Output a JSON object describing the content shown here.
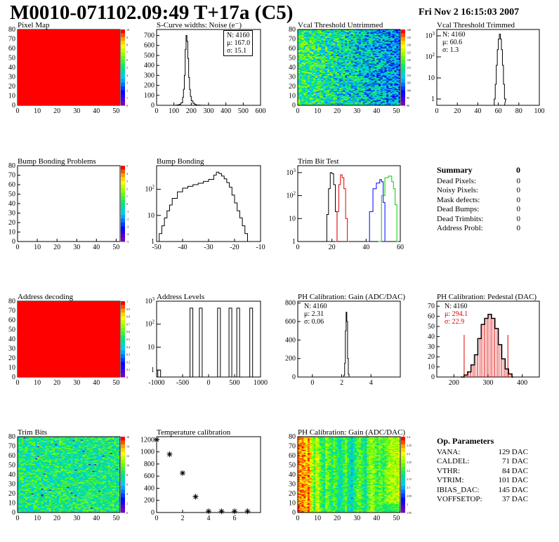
{
  "header": {
    "title": "M0010-071102.09:49 T+17a (C5)",
    "date": "Fri Nov  2 16:15:03 2007"
  },
  "panels": {
    "pixel_map": {
      "title": "Pixel Map",
      "palette": [
        "10",
        "9",
        "8",
        "7",
        "6",
        "5",
        "4",
        "3",
        "2",
        "1",
        "0"
      ]
    },
    "scurve": {
      "title": "S-Curve widths: Noise (e⁻)",
      "stats": {
        "n": "N: 4160",
        "mu": "μ: 167.0",
        "sigma": "σ: 15.1"
      }
    },
    "vcal_untrimmed": {
      "title": "Vcal Threshold Untrimmed",
      "palette": [
        "140",
        "135",
        "130",
        "125",
        "120",
        "115",
        "110",
        "105",
        "100",
        "95",
        "90"
      ]
    },
    "vcal_trimmed": {
      "title": "Vcal Threshold Trimmed",
      "stats": {
        "n": "N: 4160",
        "mu": "μ: 60.6",
        "sigma": "σ:  1.3"
      }
    },
    "bump_problems": {
      "title": "Bump Bonding Problems",
      "palette": [
        "5",
        "4",
        "3",
        "2",
        "1",
        "0",
        "-1",
        "-2",
        "-3",
        "-4",
        "-5"
      ]
    },
    "bump_bonding": {
      "title": "Bump Bonding"
    },
    "trim_bit": {
      "title": "Trim Bit Test"
    },
    "address_decoding": {
      "title": "Address decoding",
      "palette": [
        "1",
        "0.9",
        "0.8",
        "0.7",
        "0.6",
        "0.5",
        "0.4",
        "0.3",
        "0.2",
        "0.1",
        "0"
      ]
    },
    "address_levels": {
      "title": "Address Levels"
    },
    "ph_gain_hist": {
      "title": "PH Calibration: Gain (ADC/DAC)",
      "stats": {
        "n": "N: 4160",
        "mu": "μ: 2.31",
        "sigma": "σ: 0.06"
      }
    },
    "ph_pedestal": {
      "title": "PH Calibration: Pedestal (DAC)",
      "stats": {
        "n": "N: 4160",
        "mu": "μ: 294.1",
        "sigma": "σ: 22.9"
      }
    },
    "trim_bits": {
      "title": "Trim Bits",
      "palette": [
        "16",
        "14",
        "12",
        "10",
        "8",
        "6",
        "4",
        "2",
        "0"
      ]
    },
    "temperature": {
      "title": "Temperature calibration"
    },
    "ph_gain_map": {
      "title": "PH Calibration: Gain (ADC/DAC)",
      "palette": [
        "2.4",
        "2.35",
        "2.3",
        "2.25",
        "2.2",
        "2.15",
        "2.1",
        "2.05",
        "2",
        "1.95"
      ]
    }
  },
  "summary": {
    "title": "Summary",
    "total": "0",
    "rows": [
      {
        "label": "Dead Pixels:",
        "value": "0"
      },
      {
        "label": "Noisy Pixels:",
        "value": "0"
      },
      {
        "label": "Mask defects:",
        "value": "0"
      },
      {
        "label": "Dead Bumps:",
        "value": "0"
      },
      {
        "label": "Dead Trimbits:",
        "value": "0"
      },
      {
        "label": "Address Probl:",
        "value": "0"
      }
    ]
  },
  "op_params": {
    "title": "Op. Parameters",
    "rows": [
      {
        "label": "VANA:",
        "value": "129 DAC"
      },
      {
        "label": "CALDEL:",
        "value": "71 DAC"
      },
      {
        "label": "VTHR:",
        "value": "84 DAC"
      },
      {
        "label": "VTRIM:",
        "value": "101 DAC"
      },
      {
        "label": "IBIAS_DAC:",
        "value": "145 DAC"
      },
      {
        "label": "VOFFSETOP:",
        "value": "37 DAC"
      }
    ]
  },
  "chart_data": [
    {
      "id": "pixel_map",
      "type": "heatmap",
      "title": "Pixel Map",
      "xlim": [
        0,
        52
      ],
      "ylim": [
        0,
        80
      ],
      "xticks": [
        0,
        10,
        20,
        30,
        40,
        50
      ],
      "yticks": [
        0,
        10,
        20,
        30,
        40,
        50,
        60,
        70,
        80
      ],
      "fill": "uniform",
      "color": "#ff0000"
    },
    {
      "id": "scurve",
      "type": "line",
      "title": "S-Curve widths: Noise (e⁻)",
      "xlim": [
        0,
        600
      ],
      "ylim": [
        0,
        760
      ],
      "xticks": [
        0,
        100,
        200,
        300,
        400,
        500,
        600
      ],
      "yticks": [
        0,
        100,
        200,
        300,
        400,
        500,
        600,
        700
      ],
      "x": [
        100,
        110,
        120,
        130,
        140,
        150,
        155,
        160,
        165,
        170,
        175,
        180,
        185,
        190,
        195,
        200,
        210,
        220,
        230,
        250,
        280
      ],
      "y": [
        0,
        2,
        4,
        10,
        25,
        80,
        160,
        300,
        560,
        700,
        640,
        470,
        280,
        160,
        90,
        45,
        20,
        8,
        3,
        1,
        0
      ]
    },
    {
      "id": "vcal_untrimmed",
      "type": "heatmap",
      "title": "Vcal Threshold Untrimmed",
      "xlim": [
        0,
        52
      ],
      "ylim": [
        0,
        80
      ],
      "xticks": [
        0,
        10,
        20,
        30,
        40,
        50
      ],
      "yticks": [
        0,
        10,
        20,
        30,
        40,
        50,
        60,
        70,
        80
      ],
      "range": [
        90,
        140
      ]
    },
    {
      "id": "vcal_trimmed",
      "type": "line",
      "title": "Vcal Threshold Trimmed",
      "log_y": true,
      "xlim": [
        0,
        100
      ],
      "ylim": [
        0.5,
        2000
      ],
      "xticks": [
        0,
        20,
        40,
        60,
        80,
        100
      ],
      "x": [
        56,
        57,
        58,
        59,
        60,
        61,
        62,
        63,
        64,
        65,
        66
      ],
      "y": [
        1,
        5,
        40,
        220,
        700,
        1200,
        700,
        220,
        40,
        5,
        1
      ]
    },
    {
      "id": "bump_problems",
      "type": "heatmap",
      "title": "Bump Bonding Problems",
      "xlim": [
        0,
        52
      ],
      "ylim": [
        0,
        80
      ],
      "xticks": [
        0,
        10,
        20,
        30,
        40,
        50
      ],
      "yticks": [
        0,
        10,
        20,
        30,
        40,
        50,
        60,
        70,
        80
      ],
      "fill": "empty"
    },
    {
      "id": "bump_bonding",
      "type": "line",
      "title": "Bump Bonding",
      "log_y": true,
      "xlim": [
        -50,
        -10
      ],
      "ylim": [
        1,
        800
      ],
      "xticks": [
        -50,
        -40,
        -30,
        -20,
        -10
      ],
      "x": [
        -50,
        -49,
        -48,
        -47,
        -46,
        -45,
        -44,
        -42,
        -40,
        -38,
        -36,
        -34,
        -32,
        -30,
        -28,
        -27,
        -26,
        -25,
        -24,
        -23,
        -22,
        -21,
        -20,
        -19,
        -18,
        -17,
        -16,
        -15
      ],
      "y": [
        1,
        2,
        4,
        8,
        15,
        25,
        45,
        80,
        110,
        130,
        150,
        170,
        200,
        240,
        350,
        450,
        400,
        320,
        250,
        180,
        120,
        60,
        30,
        15,
        8,
        4,
        2,
        1
      ]
    },
    {
      "id": "trim_bit",
      "type": "line",
      "title": "Trim Bit Test",
      "log_y": true,
      "xlim": [
        0,
        60
      ],
      "ylim": [
        1,
        2000
      ],
      "xticks": [
        0,
        20,
        40,
        60
      ],
      "series": [
        {
          "color": "#000000",
          "x": [
            16,
            17,
            18,
            19,
            20,
            21,
            22,
            23
          ],
          "y": [
            1,
            15,
            200,
            1000,
            900,
            300,
            20,
            1
          ]
        },
        {
          "color": "#e00000",
          "x": [
            22,
            23,
            24,
            25,
            26,
            27,
            28,
            29
          ],
          "y": [
            1,
            20,
            300,
            800,
            600,
            200,
            10,
            1
          ]
        },
        {
          "color": "#0000ff",
          "x": [
            40,
            42,
            44,
            46,
            48,
            49,
            50,
            51
          ],
          "y": [
            1,
            20,
            200,
            350,
            500,
            400,
            50,
            1
          ]
        },
        {
          "color": "#00cc00",
          "x": [
            47,
            49,
            51,
            53,
            55,
            56,
            57,
            58
          ],
          "y": [
            1,
            100,
            600,
            700,
            400,
            200,
            40,
            1
          ]
        }
      ]
    },
    {
      "id": "address_decoding",
      "type": "heatmap",
      "title": "Address decoding",
      "xlim": [
        0,
        52
      ],
      "ylim": [
        0,
        80
      ],
      "xticks": [
        0,
        10,
        20,
        30,
        40,
        50
      ],
      "yticks": [
        0,
        10,
        20,
        30,
        40,
        50,
        60,
        70,
        80
      ],
      "fill": "uniform",
      "color": "#ff0000"
    },
    {
      "id": "address_levels",
      "type": "line",
      "title": "Address Levels",
      "log_y": true,
      "xlim": [
        -1000,
        1000
      ],
      "ylim": [
        0.5,
        1000
      ],
      "xticks": [
        -1000,
        -500,
        0,
        500,
        1000
      ],
      "peaks": [
        -950,
        -330,
        -150,
        200,
        420,
        570,
        820
      ],
      "heights": [
        1,
        500,
        500,
        500,
        500,
        500,
        500
      ]
    },
    {
      "id": "ph_gain_hist",
      "type": "line",
      "title": "PH Calibration: Gain (ADC/DAC)",
      "xlim": [
        -1,
        6
      ],
      "ylim": [
        0,
        820
      ],
      "xticks": [
        0,
        2,
        4
      ],
      "yticks": [
        0,
        200,
        400,
        600,
        800
      ],
      "x": [
        2.1,
        2.15,
        2.2,
        2.25,
        2.3,
        2.35,
        2.4,
        2.45,
        2.5
      ],
      "y": [
        0,
        20,
        150,
        500,
        700,
        600,
        200,
        30,
        0
      ]
    },
    {
      "id": "ph_pedestal",
      "type": "line",
      "title": "PH Calibration: Pedestal (DAC)",
      "xlim": [
        150,
        450
      ],
      "ylim": [
        0,
        75
      ],
      "xticks": [
        200,
        300,
        400
      ],
      "yticks": [
        0,
        10,
        20,
        30,
        40,
        50,
        60,
        70
      ],
      "x": [
        220,
        230,
        240,
        250,
        260,
        270,
        280,
        290,
        300,
        310,
        320,
        330,
        340,
        350,
        360,
        370
      ],
      "y": [
        0,
        2,
        5,
        12,
        22,
        38,
        52,
        58,
        62,
        58,
        48,
        32,
        18,
        8,
        3,
        0
      ]
    },
    {
      "id": "trim_bits",
      "type": "heatmap",
      "title": "Trim Bits",
      "xlim": [
        0,
        52
      ],
      "ylim": [
        0,
        80
      ],
      "xticks": [
        0,
        10,
        20,
        30,
        40,
        50
      ],
      "yticks": [
        0,
        10,
        20,
        30,
        40,
        50,
        60,
        70,
        80
      ],
      "range": [
        0,
        16
      ]
    },
    {
      "id": "temperature",
      "type": "scatter",
      "title": "Temperature calibration",
      "xlim": [
        0,
        8
      ],
      "ylim": [
        0,
        1250
      ],
      "xticks": [
        0,
        2,
        4,
        6
      ],
      "yticks": [
        0,
        200,
        400,
        600,
        800,
        1000,
        1200
      ],
      "x": [
        0,
        1,
        2,
        3,
        4,
        5,
        6,
        7
      ],
      "y": [
        1200,
        960,
        650,
        260,
        20,
        20,
        20,
        20
      ]
    },
    {
      "id": "ph_gain_map",
      "type": "heatmap",
      "title": "PH Calibration: Gain (ADC/DAC)",
      "xlim": [
        0,
        52
      ],
      "ylim": [
        0,
        80
      ],
      "xticks": [
        0,
        10,
        20,
        30,
        40,
        50
      ],
      "yticks": [
        0,
        10,
        20,
        30,
        40,
        50,
        60,
        70,
        80
      ],
      "range": [
        1.95,
        2.4
      ]
    }
  ]
}
